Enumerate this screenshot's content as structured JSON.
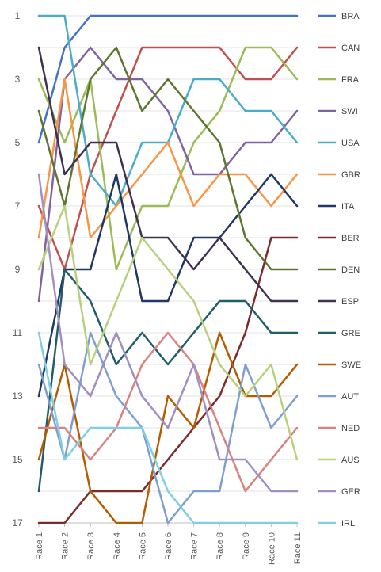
{
  "chart_data": {
    "type": "line",
    "title": "",
    "xlabel": "",
    "ylabel": "",
    "y_reversed": true,
    "ylim": [
      1,
      17
    ],
    "yticks": [
      1,
      3,
      5,
      7,
      9,
      11,
      13,
      15,
      17
    ],
    "grid": true,
    "legend": "right",
    "categories": [
      "Race 1",
      "Race 2",
      "Race 3",
      "Race 4",
      "Race 5",
      "Race 6",
      "Race 7",
      "Race 8",
      "Race 9",
      "Race 10",
      "Race 11"
    ],
    "series": [
      {
        "name": "BRA",
        "color": "#4472c4",
        "values": [
          5,
          2,
          1,
          1,
          1,
          1,
          1,
          1,
          1,
          1,
          1
        ]
      },
      {
        "name": "CAN",
        "color": "#c0504d",
        "values": [
          7,
          9,
          6,
          4,
          2,
          2,
          2,
          2,
          3,
          3,
          2
        ]
      },
      {
        "name": "FRA",
        "color": "#9bbb59",
        "values": [
          3,
          5,
          3,
          9,
          7,
          7,
          5,
          4,
          2,
          2,
          3
        ]
      },
      {
        "name": "SWI",
        "color": "#8064a2",
        "values": [
          10,
          3,
          2,
          3,
          3,
          4,
          6,
          6,
          5,
          5,
          4
        ]
      },
      {
        "name": "USA",
        "color": "#4bacc6",
        "values": [
          1,
          1,
          6,
          7,
          5,
          5,
          3,
          3,
          4,
          4,
          5
        ]
      },
      {
        "name": "GBR",
        "color": "#f79646",
        "values": [
          8,
          3,
          8,
          7,
          6,
          5,
          7,
          6,
          6,
          7,
          6
        ]
      },
      {
        "name": "ITA",
        "color": "#1f3864",
        "values": [
          13,
          9,
          9,
          6,
          10,
          10,
          8,
          8,
          7,
          6,
          7
        ]
      },
      {
        "name": "BER",
        "color": "#7b2c2c",
        "values": [
          17,
          17,
          16,
          16,
          16,
          15,
          14,
          13,
          11,
          8,
          8
        ]
      },
      {
        "name": "DEN",
        "color": "#5f7530",
        "values": [
          4,
          7,
          3,
          2,
          4,
          3,
          4,
          5,
          8,
          9,
          9
        ]
      },
      {
        "name": "ESP",
        "color": "#3f3151",
        "values": [
          2,
          6,
          5,
          5,
          8,
          8,
          9,
          8,
          9,
          10,
          10
        ]
      },
      {
        "name": "GRE",
        "color": "#215d6b",
        "values": [
          16,
          9,
          10,
          12,
          11,
          12,
          11,
          10,
          10,
          11,
          11
        ]
      },
      {
        "name": "SWE",
        "color": "#b35c00",
        "values": [
          15,
          12,
          16,
          17,
          17,
          13,
          14,
          11,
          13,
          13,
          12
        ]
      },
      {
        "name": "AUT",
        "color": "#7f9fcf",
        "values": [
          12,
          15,
          11,
          13,
          14,
          17,
          16,
          16,
          12,
          14,
          13
        ]
      },
      {
        "name": "NED",
        "color": "#d98380",
        "values": [
          14,
          14,
          15,
          14,
          12,
          11,
          12,
          14,
          16,
          15,
          14
        ]
      },
      {
        "name": "AUS",
        "color": "#b9d07e",
        "values": [
          9,
          7,
          12,
          10,
          8,
          9,
          10,
          12,
          13,
          12,
          15
        ]
      },
      {
        "name": "GER",
        "color": "#a08fc0",
        "values": [
          6,
          12,
          13,
          11,
          13,
          14,
          12,
          15,
          15,
          16,
          16
        ]
      },
      {
        "name": "IRL",
        "color": "#7fd0e0",
        "values": [
          11,
          15,
          14,
          14,
          14,
          16,
          17,
          17,
          17,
          17,
          17
        ]
      }
    ]
  }
}
